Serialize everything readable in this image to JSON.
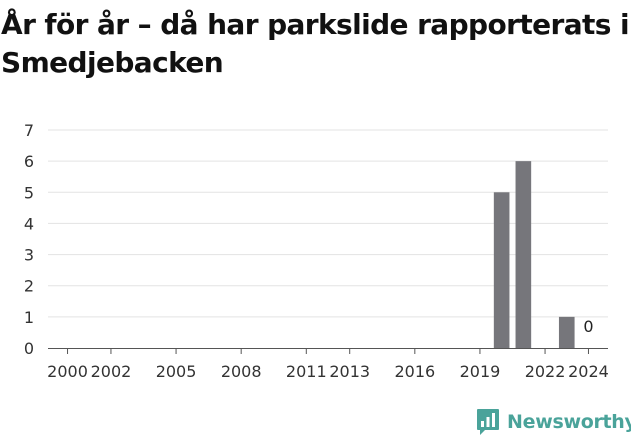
{
  "title": "År för år – då har parkslide rapporterats i Smedjebacken",
  "brand": {
    "name": "Newsworthy",
    "icon": "newsworthy-logo-icon",
    "color": "#4aa39a"
  },
  "chart_data": {
    "type": "bar",
    "title": "År för år – då har parkslide rapporterats i Smedjebacken",
    "xlabel": "",
    "ylabel": "",
    "x": [
      2000,
      2001,
      2002,
      2003,
      2004,
      2005,
      2006,
      2007,
      2008,
      2009,
      2010,
      2011,
      2012,
      2013,
      2014,
      2015,
      2016,
      2017,
      2018,
      2019,
      2020,
      2021,
      2022,
      2023,
      2024
    ],
    "values": [
      0,
      0,
      0,
      0,
      0,
      0,
      0,
      0,
      0,
      0,
      0,
      0,
      0,
      0,
      0,
      0,
      0,
      0,
      0,
      0,
      5,
      6,
      0,
      1,
      0
    ],
    "x_tick_labels": [
      "2000",
      "2002",
      "2005",
      "2008",
      "2011",
      "2013",
      "2016",
      "2019",
      "2022",
      "2024"
    ],
    "y_ticks": [
      "0",
      "1",
      "2",
      "3",
      "4",
      "5",
      "6",
      "7"
    ],
    "ylim": [
      0,
      7
    ],
    "grid": true,
    "legend": "none",
    "bar_color": "#76767b",
    "data_labels": [
      {
        "x": 2024,
        "text": "0"
      }
    ]
  }
}
